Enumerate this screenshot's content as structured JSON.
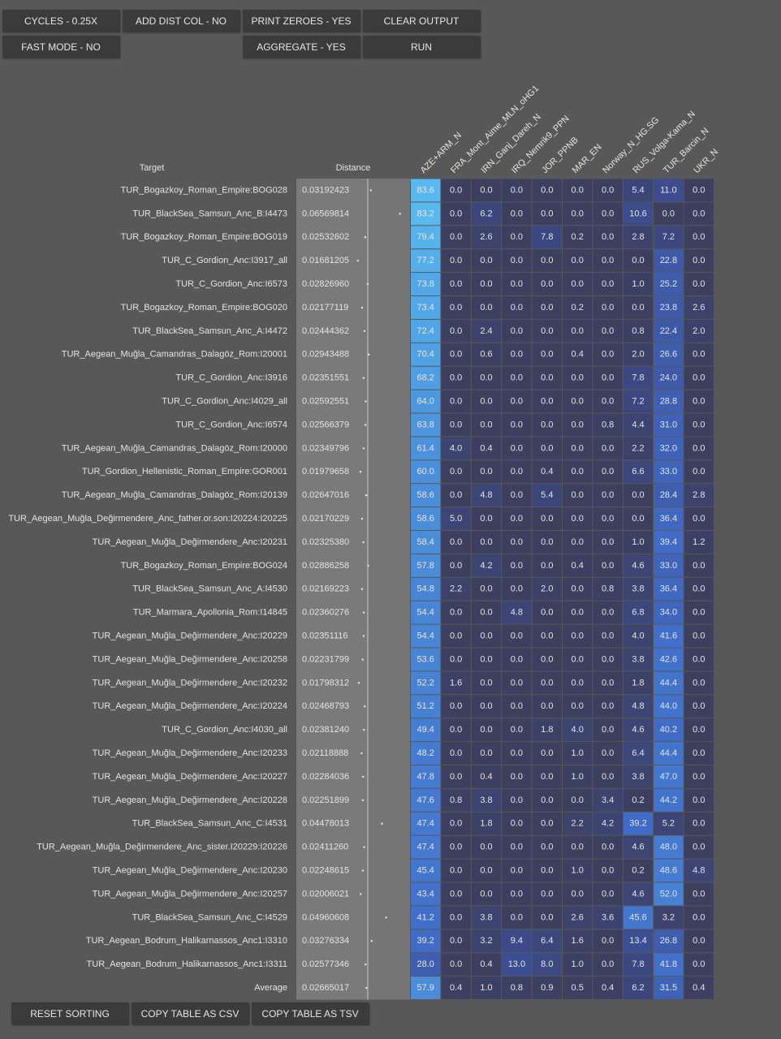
{
  "buttons": [
    "CYCLES - 0.25X",
    "ADD DIST COL - NO",
    "PRINT ZEROES - YES",
    "CLEAR OUTPUT",
    "FAST MODE - NO",
    "AGGREGATE - YES",
    "RUN"
  ],
  "table": {
    "headers": {
      "target": "Target",
      "distance": "Distance",
      "columns": [
        "AZE+ARM_N",
        "FRA_Mont_Aime_MLN_oHG1",
        "IRN_Ganj_Dareh_N",
        "IRQ_Nemrik9_PPN",
        "JOR_PPNB",
        "MAR_EN",
        "Norway_N_HG.SG",
        "RUS_Volga-Kama_N",
        "TUR_Barcin_N",
        "UKR_N"
      ]
    },
    "rows": [
      {
        "target": "TUR_Bogazkoy_Roman_Empire:BOG028",
        "distance": "0.03192423",
        "values": [
          "83.6",
          "0.0",
          "0.0",
          "0.0",
          "0.0",
          "0.0",
          "0.0",
          "5.4",
          "11.0",
          "0.0"
        ]
      },
      {
        "target": "TUR_BlackSea_Samsun_Anc_B:I4473",
        "distance": "0.06569814",
        "values": [
          "83.2",
          "0.0",
          "6.2",
          "0.0",
          "0.0",
          "0.0",
          "0.0",
          "10.6",
          "0.0",
          "0.0"
        ]
      },
      {
        "target": "TUR_Bogazkoy_Roman_Empire:BOG019",
        "distance": "0.02532602",
        "values": [
          "79.4",
          "0.0",
          "2.6",
          "0.0",
          "7.8",
          "0.2",
          "0.0",
          "2.8",
          "7.2",
          "0.0"
        ]
      },
      {
        "target": "TUR_C_Gordion_Anc:I3917_all",
        "distance": "0.01681205",
        "values": [
          "77.2",
          "0.0",
          "0.0",
          "0.0",
          "0.0",
          "0.0",
          "0.0",
          "0.0",
          "22.8",
          "0.0"
        ]
      },
      {
        "target": "TUR_C_Gordion_Anc:I6573",
        "distance": "0.02826960",
        "values": [
          "73.8",
          "0.0",
          "0.0",
          "0.0",
          "0.0",
          "0.0",
          "0.0",
          "1.0",
          "25.2",
          "0.0"
        ]
      },
      {
        "target": "TUR_Bogazkoy_Roman_Empire:BOG020",
        "distance": "0.02177119",
        "values": [
          "73.4",
          "0.0",
          "0.0",
          "0.0",
          "0.0",
          "0.2",
          "0.0",
          "0.0",
          "23.8",
          "2.6"
        ]
      },
      {
        "target": "TUR_BlackSea_Samsun_Anc_A:I4472",
        "distance": "0.02444362",
        "values": [
          "72.4",
          "0.0",
          "2.4",
          "0.0",
          "0.0",
          "0.0",
          "0.0",
          "0.8",
          "22.4",
          "2.0"
        ]
      },
      {
        "target": "TUR_Aegean_Muğla_Camandras_Dalagöz_Rom:I20001",
        "distance": "0.02943488",
        "values": [
          "70.4",
          "0.0",
          "0.6",
          "0.0",
          "0.0",
          "0.4",
          "0.0",
          "2.0",
          "26.6",
          "0.0"
        ]
      },
      {
        "target": "TUR_C_Gordion_Anc:I3916",
        "distance": "0.02351551",
        "values": [
          "68.2",
          "0.0",
          "0.0",
          "0.0",
          "0.0",
          "0.0",
          "0.0",
          "7.8",
          "24.0",
          "0.0"
        ]
      },
      {
        "target": "TUR_C_Gordion_Anc:I4029_all",
        "distance": "0.02592551",
        "values": [
          "64.0",
          "0.0",
          "0.0",
          "0.0",
          "0.0",
          "0.0",
          "0.0",
          "7.2",
          "28.8",
          "0.0"
        ]
      },
      {
        "target": "TUR_C_Gordion_Anc:I6574",
        "distance": "0.02566379",
        "values": [
          "63.8",
          "0.0",
          "0.0",
          "0.0",
          "0.0",
          "0.0",
          "0.8",
          "4.4",
          "31.0",
          "0.0"
        ]
      },
      {
        "target": "TUR_Aegean_Muğla_Camandras_Dalagöz_Rom:I20000",
        "distance": "0.02349796",
        "values": [
          "61.4",
          "4.0",
          "0.4",
          "0.0",
          "0.0",
          "0.0",
          "0.0",
          "2.2",
          "32.0",
          "0.0"
        ]
      },
      {
        "target": "TUR_Gordion_Hellenistic_Roman_Empire:GOR001",
        "distance": "0.01979658",
        "values": [
          "60.0",
          "0.0",
          "0.0",
          "0.0",
          "0.4",
          "0.0",
          "0.0",
          "6.6",
          "33.0",
          "0.0"
        ]
      },
      {
        "target": "TUR_Aegean_Muğla_Camandras_Dalagöz_Rom:I20139",
        "distance": "0.02647016",
        "values": [
          "58.6",
          "0.0",
          "4.8",
          "0.0",
          "5.4",
          "0.0",
          "0.0",
          "0.0",
          "28.4",
          "2.8"
        ]
      },
      {
        "target": "TUR_Aegean_Muğla_Değirmendere_Anc_father.or.son:I20224:I20225",
        "distance": "0.02170229",
        "values": [
          "58.6",
          "5.0",
          "0.0",
          "0.0",
          "0.0",
          "0.0",
          "0.0",
          "0.0",
          "36.4",
          "0.0"
        ]
      },
      {
        "target": "TUR_Aegean_Muğla_Değirmendere_Anc:I20231",
        "distance": "0.02325380",
        "values": [
          "58.4",
          "0.0",
          "0.0",
          "0.0",
          "0.0",
          "0.0",
          "0.0",
          "1.0",
          "39.4",
          "1.2"
        ]
      },
      {
        "target": "TUR_Bogazkoy_Roman_Empire:BOG024",
        "distance": "0.02886258",
        "values": [
          "57.8",
          "0.0",
          "4.2",
          "0.0",
          "0.0",
          "0.4",
          "0.0",
          "4.6",
          "33.0",
          "0.0"
        ]
      },
      {
        "target": "TUR_BlackSea_Samsun_Anc_A:I4530",
        "distance": "0.02169223",
        "values": [
          "54.8",
          "2.2",
          "0.0",
          "0.0",
          "2.0",
          "0.0",
          "0.8",
          "3.8",
          "36.4",
          "0.0"
        ]
      },
      {
        "target": "TUR_Marmara_Apollonia_Rom:I14845",
        "distance": "0.02360276",
        "values": [
          "54.4",
          "0.0",
          "0.0",
          "4.8",
          "0.0",
          "0.0",
          "0.0",
          "6.8",
          "34.0",
          "0.0"
        ]
      },
      {
        "target": "TUR_Aegean_Muğla_Değirmendere_Anc:I20229",
        "distance": "0.02351116",
        "values": [
          "54.4",
          "0.0",
          "0.0",
          "0.0",
          "0.0",
          "0.0",
          "0.0",
          "4.0",
          "41.6",
          "0.0"
        ]
      },
      {
        "target": "TUR_Aegean_Muğla_Değirmendere_Anc:I20258",
        "distance": "0.02231799",
        "values": [
          "53.6",
          "0.0",
          "0.0",
          "0.0",
          "0.0",
          "0.0",
          "0.0",
          "3.8",
          "42.6",
          "0.0"
        ]
      },
      {
        "target": "TUR_Aegean_Muğla_Değirmendere_Anc:I20232",
        "distance": "0.01798312",
        "values": [
          "52.2",
          "1.6",
          "0.0",
          "0.0",
          "0.0",
          "0.0",
          "0.0",
          "1.8",
          "44.4",
          "0.0"
        ]
      },
      {
        "target": "TUR_Aegean_Muğla_Değirmendere_Anc:I20224",
        "distance": "0.02468793",
        "values": [
          "51.2",
          "0.0",
          "0.0",
          "0.0",
          "0.0",
          "0.0",
          "0.0",
          "4.8",
          "44.0",
          "0.0"
        ]
      },
      {
        "target": "TUR_C_Gordion_Anc:I4030_all",
        "distance": "0.02381240",
        "values": [
          "49.4",
          "0.0",
          "0.0",
          "0.0",
          "1.8",
          "4.0",
          "0.0",
          "4.6",
          "40.2",
          "0.0"
        ]
      },
      {
        "target": "TUR_Aegean_Muğla_Değirmendere_Anc:I20233",
        "distance": "0.02118888",
        "values": [
          "48.2",
          "0.0",
          "0.0",
          "0.0",
          "0.0",
          "1.0",
          "0.0",
          "6.4",
          "44.4",
          "0.0"
        ]
      },
      {
        "target": "TUR_Aegean_Muğla_Değirmendere_Anc:I20227",
        "distance": "0.02284036",
        "values": [
          "47.8",
          "0.0",
          "0.4",
          "0.0",
          "0.0",
          "1.0",
          "0.0",
          "3.8",
          "47.0",
          "0.0"
        ]
      },
      {
        "target": "TUR_Aegean_Muğla_Değirmendere_Anc:I20228",
        "distance": "0.02251899",
        "values": [
          "47.6",
          "0.8",
          "3.8",
          "0.0",
          "0.0",
          "0.0",
          "3.4",
          "0.2",
          "44.2",
          "0.0"
        ]
      },
      {
        "target": "TUR_BlackSea_Samsun_Anc_C:I4531",
        "distance": "0.04478013",
        "values": [
          "47.4",
          "0.0",
          "1.8",
          "0.0",
          "0.0",
          "2.2",
          "4.2",
          "39.2",
          "5.2",
          "0.0"
        ]
      },
      {
        "target": "TUR_Aegean_Muğla_Değirmendere_Anc_sister.I20229:I20226",
        "distance": "0.02411260",
        "values": [
          "47.4",
          "0.0",
          "0.0",
          "0.0",
          "0.0",
          "0.0",
          "0.0",
          "4.6",
          "48.0",
          "0.0"
        ]
      },
      {
        "target": "TUR_Aegean_Muğla_Değirmendere_Anc:I20230",
        "distance": "0.02248615",
        "values": [
          "45.4",
          "0.0",
          "0.0",
          "0.0",
          "0.0",
          "1.0",
          "0.0",
          "0.2",
          "48.6",
          "4.8"
        ]
      },
      {
        "target": "TUR_Aegean_Muğla_Değirmendere_Anc:I20257",
        "distance": "0.02006021",
        "values": [
          "43.4",
          "0.0",
          "0.0",
          "0.0",
          "0.0",
          "0.0",
          "0.0",
          "4.6",
          "52.0",
          "0.0"
        ]
      },
      {
        "target": "TUR_BlackSea_Samsun_Anc_C:I4529",
        "distance": "0.04960608",
        "values": [
          "41.2",
          "0.0",
          "3.8",
          "0.0",
          "0.0",
          "2.6",
          "3.6",
          "45.6",
          "3.2",
          "0.0"
        ]
      },
      {
        "target": "TUR_Aegean_Bodrum_Halikarnassos_Anc1:I3310",
        "distance": "0.03276334",
        "values": [
          "39.2",
          "0.0",
          "3.2",
          "9.4",
          "6.4",
          "1.6",
          "0.0",
          "13.4",
          "26.8",
          "0.0"
        ]
      },
      {
        "target": "TUR_Aegean_Bodrum_Halikarnassos_Anc1:I3311",
        "distance": "0.02577346",
        "values": [
          "28.0",
          "0.0",
          "0.4",
          "13.0",
          "8.0",
          "1.0",
          "0.0",
          "7.8",
          "41.8",
          "0.0"
        ]
      }
    ],
    "average": {
      "target": "Average",
      "distance": "0.02665017",
      "values": [
        "57.9",
        "0.4",
        "1.0",
        "0.8",
        "0.9",
        "0.5",
        "0.4",
        "6.2",
        "31.5",
        "0.4"
      ]
    }
  },
  "footer_buttons": [
    "RESET SORTING",
    "COPY TABLE AS CSV",
    "COPY TABLE AS TSV"
  ]
}
